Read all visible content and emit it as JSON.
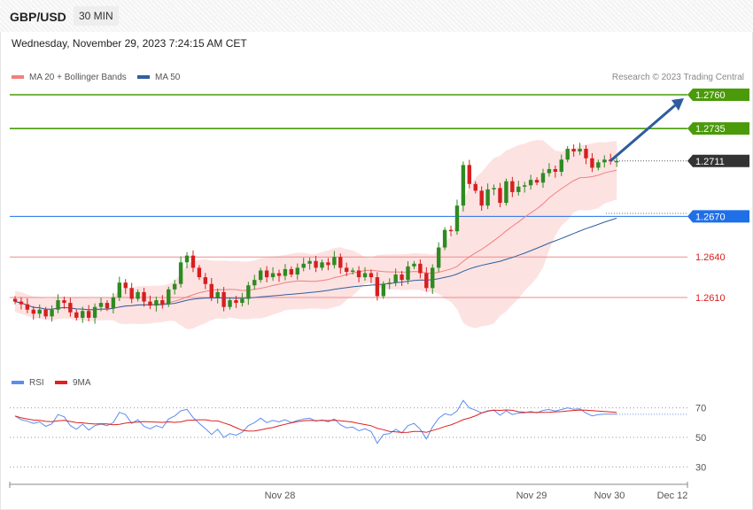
{
  "header": {
    "symbol": "GBP/USD",
    "timeframe": "30 MIN"
  },
  "datetime": "Wednesday, November 29, 2023 7:24:15 AM CET",
  "legend": {
    "items": [
      {
        "label": "MA 20 + Bollinger Bands",
        "color": "#f08080"
      },
      {
        "label": "MA 50",
        "color": "#2f5f9e"
      }
    ],
    "copyright": "Research © 2023 Trading Central"
  },
  "rsi_legend": {
    "items": [
      {
        "label": "RSI",
        "color": "#5b8def"
      },
      {
        "label": "9MA",
        "color": "#e02020"
      }
    ]
  },
  "colors": {
    "resistance": "#4a9a0a",
    "pivot": "#1f6fe8",
    "support": "#f28b8b",
    "up": "#2e8b22",
    "down": "#d61f1f",
    "current": "#333333",
    "arrow": "#2e5c9e",
    "band": "#fde2e2"
  },
  "chart_data": {
    "type": "candlestick",
    "x_ticks": [
      "Nov 28",
      "Nov 29",
      "Nov 30",
      "Dec 12"
    ],
    "levels": [
      {
        "value": 1.276,
        "label": "1.2760",
        "kind": "resistance",
        "tag": true
      },
      {
        "value": 1.2735,
        "label": "1.2735",
        "kind": "resistance",
        "tag": true
      },
      {
        "value": 1.2711,
        "label": "1.2711",
        "kind": "current",
        "tag": true
      },
      {
        "value": 1.267,
        "label": "1.2670",
        "kind": "pivot",
        "tag": true
      },
      {
        "value": 1.264,
        "label": "1.2640",
        "kind": "support",
        "tag": false
      },
      {
        "value": 1.261,
        "label": "1.2610",
        "kind": "support",
        "tag": false
      }
    ],
    "closes": [
      1.2607,
      1.2605,
      1.2601,
      1.2598,
      1.2601,
      1.2596,
      1.2601,
      1.2608,
      1.2606,
      1.2599,
      1.2595,
      1.26,
      1.2595,
      1.2603,
      1.2606,
      1.2602,
      1.261,
      1.2621,
      1.2617,
      1.2609,
      1.2614,
      1.2607,
      1.2604,
      1.2608,
      1.2605,
      1.2616,
      1.262,
      1.2636,
      1.2641,
      1.2632,
      1.2625,
      1.262,
      1.261,
      1.2614,
      1.2603,
      1.2608,
      1.2606,
      1.2609,
      1.2619,
      1.2623,
      1.263,
      1.2625,
      1.2628,
      1.2626,
      1.2631,
      1.2627,
      1.2632,
      1.2635,
      1.2637,
      1.2632,
      1.2636,
      1.2634,
      1.264,
      1.2632,
      1.2629,
      1.263,
      1.2625,
      1.2628,
      1.2625,
      1.2611,
      1.262,
      1.2621,
      1.2627,
      1.2623,
      1.2633,
      1.2635,
      1.2628,
      1.2617,
      1.2632,
      1.2647,
      1.266,
      1.2659,
      1.2678,
      1.2708,
      1.2694,
      1.2689,
      1.2678,
      1.269,
      1.2691,
      1.268,
      1.2696,
      1.2688,
      1.2692,
      1.2693,
      1.2697,
      1.2695,
      1.2702,
      1.2705,
      1.2703,
      1.2712,
      1.272,
      1.2718,
      1.272,
      1.2713,
      1.2706,
      1.271,
      1.2712,
      1.2711,
      1.2711
    ],
    "rsi": [
      64.5,
      62.0,
      61.0,
      59.5,
      60.5,
      57.5,
      59.2,
      65.5,
      64.0,
      58.0,
      55.5,
      59.0,
      55.0,
      58.0,
      59.0,
      58.0,
      60.0,
      67.0,
      65.5,
      59.5,
      62.0,
      57.5,
      55.8,
      58.0,
      56.5,
      62.5,
      64.5,
      68.0,
      69.0,
      63.5,
      59.5,
      56.0,
      52.0,
      55.5,
      50.0,
      52.5,
      51.5,
      53.5,
      58.0,
      60.0,
      63.0,
      60.0,
      61.5,
      60.5,
      62.0,
      60.0,
      61.5,
      62.5,
      63.0,
      61.0,
      61.8,
      60.5,
      62.5,
      58.5,
      56.5,
      57.0,
      54.5,
      55.8,
      54.0,
      46.0,
      52.0,
      52.5,
      55.5,
      53.0,
      58.0,
      59.5,
      55.5,
      49.0,
      57.0,
      63.0,
      66.0,
      65.0,
      68.0,
      75.0,
      70.0,
      68.5,
      66.5,
      68.0,
      68.5,
      65.0,
      68.0,
      65.5,
      66.5,
      66.7,
      67.6,
      66.7,
      68.3,
      68.9,
      67.9,
      68.9,
      70.0,
      69.0,
      69.3,
      66.5,
      64.6,
      65.5,
      65.8,
      65.8,
      65.7
    ],
    "rsi_ticks": [
      70,
      50,
      30
    ],
    "projection": {
      "from": 1.2711,
      "to": 1.276
    }
  }
}
